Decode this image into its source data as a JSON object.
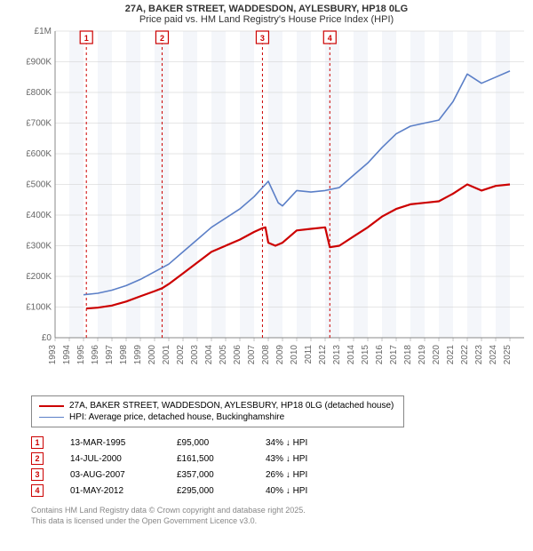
{
  "title": {
    "line1": "27A, BAKER STREET, WADDESDON, AYLESBURY, HP18 0LG",
    "line2": "Price paid vs. HM Land Registry's House Price Index (HPI)"
  },
  "chart": {
    "type": "line",
    "background_color": "#ffffff",
    "plot_bg_stripe_color": "#f4f6fa",
    "grid_color": "#cccccc",
    "axis_color": "#888888",
    "x_range": [
      1993,
      2026
    ],
    "y_range": [
      0,
      1000000
    ],
    "y_ticks": [
      {
        "v": 0,
        "label": "£0"
      },
      {
        "v": 100000,
        "label": "£100K"
      },
      {
        "v": 200000,
        "label": "£200K"
      },
      {
        "v": 300000,
        "label": "£300K"
      },
      {
        "v": 400000,
        "label": "£400K"
      },
      {
        "v": 500000,
        "label": "£500K"
      },
      {
        "v": 600000,
        "label": "£600K"
      },
      {
        "v": 700000,
        "label": "£700K"
      },
      {
        "v": 800000,
        "label": "£800K"
      },
      {
        "v": 900000,
        "label": "£900K"
      },
      {
        "v": 1000000,
        "label": "£1M"
      }
    ],
    "x_ticks": [
      1993,
      1994,
      1995,
      1996,
      1997,
      1998,
      1999,
      2000,
      2001,
      2002,
      2003,
      2004,
      2005,
      2006,
      2007,
      2008,
      2009,
      2010,
      2011,
      2012,
      2013,
      2014,
      2015,
      2016,
      2017,
      2018,
      2019,
      2020,
      2021,
      2022,
      2023,
      2024,
      2025
    ],
    "series": [
      {
        "id": "price_paid",
        "label": "27A, BAKER STREET, WADDESDON, AYLESBURY, HP18 0LG (detached house)",
        "color": "#cc0000",
        "line_width": 2.2,
        "data": [
          [
            1995.2,
            95000
          ],
          [
            1996,
            98000
          ],
          [
            1997,
            105000
          ],
          [
            1998,
            118000
          ],
          [
            1999,
            135000
          ],
          [
            2000,
            152000
          ],
          [
            2000.53,
            161500
          ],
          [
            2001,
            175000
          ],
          [
            2002,
            210000
          ],
          [
            2003,
            245000
          ],
          [
            2004,
            280000
          ],
          [
            2005,
            300000
          ],
          [
            2006,
            320000
          ],
          [
            2007,
            345000
          ],
          [
            2007.59,
            357000
          ],
          [
            2007.8,
            360000
          ],
          [
            2008,
            310000
          ],
          [
            2008.5,
            300000
          ],
          [
            2009,
            310000
          ],
          [
            2010,
            350000
          ],
          [
            2011,
            355000
          ],
          [
            2012,
            360000
          ],
          [
            2012.33,
            295000
          ],
          [
            2013,
            300000
          ],
          [
            2014,
            330000
          ],
          [
            2015,
            360000
          ],
          [
            2016,
            395000
          ],
          [
            2017,
            420000
          ],
          [
            2018,
            435000
          ],
          [
            2019,
            440000
          ],
          [
            2020,
            445000
          ],
          [
            2021,
            470000
          ],
          [
            2022,
            500000
          ],
          [
            2023,
            480000
          ],
          [
            2024,
            495000
          ],
          [
            2025,
            500000
          ]
        ]
      },
      {
        "id": "hpi",
        "label": "HPI: Average price, detached house, Buckinghamshire",
        "color": "#5b7fc7",
        "line_width": 1.6,
        "data": [
          [
            1995,
            140000
          ],
          [
            1996,
            145000
          ],
          [
            1997,
            155000
          ],
          [
            1998,
            170000
          ],
          [
            1999,
            190000
          ],
          [
            2000,
            215000
          ],
          [
            2001,
            240000
          ],
          [
            2002,
            280000
          ],
          [
            2003,
            320000
          ],
          [
            2004,
            360000
          ],
          [
            2005,
            390000
          ],
          [
            2006,
            420000
          ],
          [
            2007,
            460000
          ],
          [
            2008,
            510000
          ],
          [
            2008.7,
            440000
          ],
          [
            2009,
            430000
          ],
          [
            2010,
            480000
          ],
          [
            2011,
            475000
          ],
          [
            2012,
            480000
          ],
          [
            2013,
            490000
          ],
          [
            2014,
            530000
          ],
          [
            2015,
            570000
          ],
          [
            2016,
            620000
          ],
          [
            2017,
            665000
          ],
          [
            2018,
            690000
          ],
          [
            2019,
            700000
          ],
          [
            2020,
            710000
          ],
          [
            2021,
            770000
          ],
          [
            2022,
            860000
          ],
          [
            2023,
            830000
          ],
          [
            2024,
            850000
          ],
          [
            2025,
            870000
          ]
        ]
      }
    ],
    "transaction_markers": {
      "color": "#cc0000",
      "dash": "3,3",
      "items": [
        {
          "n": "1",
          "x": 1995.2
        },
        {
          "n": "2",
          "x": 2000.53
        },
        {
          "n": "3",
          "x": 2007.59
        },
        {
          "n": "4",
          "x": 2012.33
        }
      ]
    }
  },
  "transactions": [
    {
      "n": "1",
      "date": "13-MAR-1995",
      "price": "£95,000",
      "diff": "34% ↓ HPI"
    },
    {
      "n": "2",
      "date": "14-JUL-2000",
      "price": "£161,500",
      "diff": "43% ↓ HPI"
    },
    {
      "n": "3",
      "date": "03-AUG-2007",
      "price": "£357,000",
      "diff": "26% ↓ HPI"
    },
    {
      "n": "4",
      "date": "01-MAY-2012",
      "price": "£295,000",
      "diff": "40% ↓ HPI"
    }
  ],
  "footer": {
    "line1": "Contains HM Land Registry data © Crown copyright and database right 2025.",
    "line2": "This data is licensed under the Open Government Licence v3.0."
  },
  "marker_color": "#cc0000"
}
